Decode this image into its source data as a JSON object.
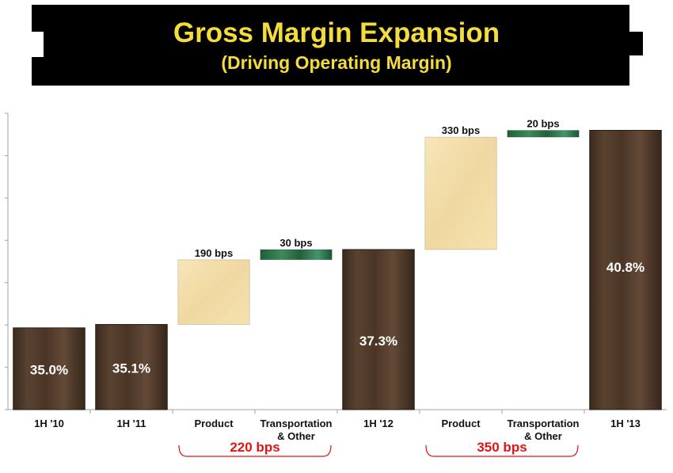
{
  "header": {
    "title": "Gross Margin Expansion",
    "subtitle": "(Driving Operating Margin)",
    "background_color": "#000000",
    "title_color": "#f3dc3b"
  },
  "chart_data": {
    "type": "bar",
    "subtype": "waterfall",
    "title": "Gross Margin Expansion",
    "subtitle": "(Driving Operating Margin)",
    "categories": [
      "1H '10",
      "1H '11",
      "Product",
      "Transportation\n& Other",
      "1H '12",
      "Product",
      "Transportation\n& Other",
      "1H '13"
    ],
    "ylim": [
      32.6,
      41.3
    ],
    "grid": false,
    "bars": [
      {
        "category": "1H '10",
        "kind": "total",
        "value": 35.0,
        "label": "35.0%"
      },
      {
        "category": "1H '11",
        "kind": "total",
        "value": 35.1,
        "label": "35.1%"
      },
      {
        "category": "Product",
        "kind": "increment",
        "value_bps": 190,
        "base": 35.1,
        "label": "190 bps"
      },
      {
        "category": "Transportation & Other",
        "kind": "increment",
        "value_bps": 30,
        "base": 37.0,
        "label": "30 bps"
      },
      {
        "category": "1H '12",
        "kind": "total",
        "value": 37.3,
        "label": "37.3%"
      },
      {
        "category": "Product",
        "kind": "increment",
        "value_bps": 330,
        "base": 37.3,
        "label": "330 bps"
      },
      {
        "category": "Transportation & Other",
        "kind": "increment",
        "value_bps": 20,
        "base": 40.6,
        "label": "20 bps"
      },
      {
        "category": "1H '13",
        "kind": "total",
        "value": 40.8,
        "label": "40.8%"
      }
    ],
    "group_annotations": [
      {
        "label": "220 bps",
        "from": 2,
        "to": 3
      },
      {
        "label": "350 bps",
        "from": 5,
        "to": 6
      }
    ],
    "colors": {
      "total": "#4a3526",
      "product": "#f3dca4",
      "transportation": "#2e7a4c",
      "annotation": "#e01414"
    }
  }
}
